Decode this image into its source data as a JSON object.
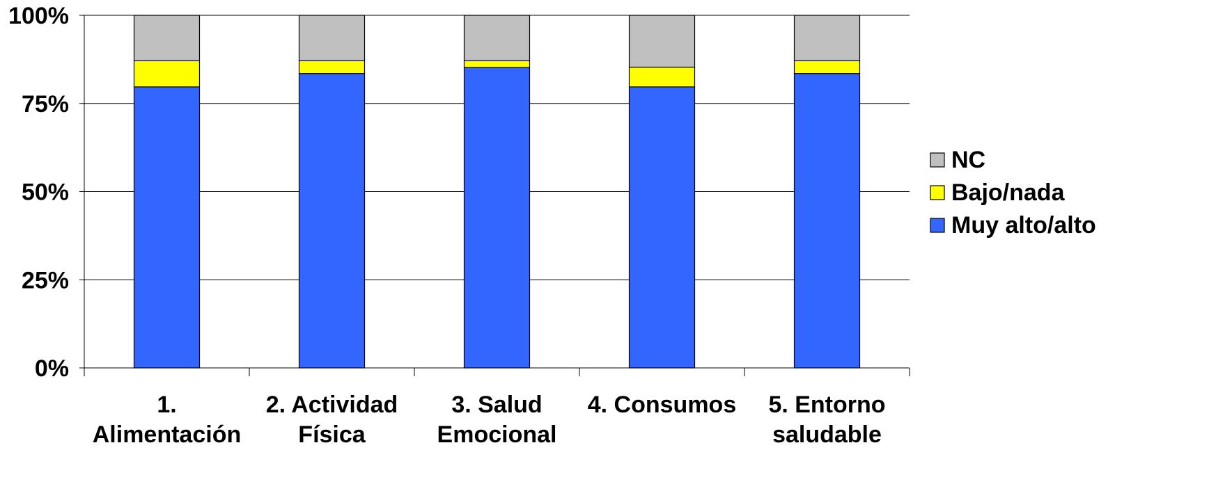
{
  "chart_data": {
    "type": "bar",
    "stacked": true,
    "categories": [
      [
        "1.",
        "Alimentación"
      ],
      [
        "2. Actividad",
        "Física"
      ],
      [
        "3. Salud",
        "Emocional"
      ],
      [
        "4. Consumos"
      ],
      [
        "5. Entorno",
        "saludable"
      ]
    ],
    "series": [
      {
        "name": "Muy alto/alto",
        "color": "#3366FF",
        "values": [
          79.7,
          83.5,
          85.2,
          79.7,
          83.5
        ]
      },
      {
        "name": "Bajo/nada",
        "color": "#FFFF00",
        "values": [
          7.4,
          3.6,
          1.9,
          5.6,
          3.6
        ]
      },
      {
        "name": "NC",
        "color": "#C0C0C0",
        "values": [
          12.9,
          12.9,
          12.9,
          14.7,
          12.9
        ]
      }
    ],
    "y_ticks": [
      "0%",
      "25%",
      "50%",
      "75%",
      "100%"
    ],
    "ylim": [
      0,
      100
    ],
    "grid": true,
    "legend_position": "right",
    "legend_order": [
      "NC",
      "Bajo/nada",
      "Muy alto/alto"
    ]
  }
}
